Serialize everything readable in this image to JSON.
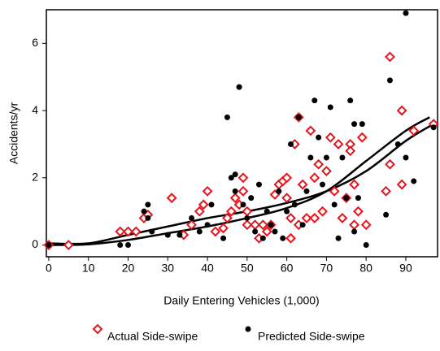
{
  "chart_data": {
    "type": "scatter",
    "x_label": "Daily Entering Vehicles (1,000)",
    "y_label": "Accidents/yr",
    "xlim": [
      -0.6,
      98
    ],
    "ylim": [
      -0.35,
      7
    ],
    "xticks": [
      0,
      10,
      20,
      30,
      40,
      50,
      60,
      70,
      80,
      90
    ],
    "yticks": [
      0,
      2,
      4,
      6
    ],
    "series": [
      {
        "name": "Actual Side-swipe",
        "color": "#e8141c",
        "marker": "diamond",
        "x": [
          0,
          5,
          18,
          20,
          22,
          24,
          25,
          31,
          34,
          36,
          38,
          39,
          40,
          42,
          44,
          45,
          46,
          47,
          48,
          49,
          49,
          50,
          50,
          52,
          53,
          54,
          55,
          56,
          57,
          58,
          59,
          60,
          60,
          61,
          61,
          62,
          63,
          63,
          64,
          65,
          66,
          67,
          67,
          68,
          69,
          70,
          71,
          72,
          73,
          74,
          75,
          76,
          76,
          77,
          77,
          78,
          79,
          80,
          85,
          86,
          86,
          89,
          89,
          92,
          97
        ],
        "values": [
          0,
          0,
          0.4,
          0.4,
          0.4,
          0.8,
          0.9,
          1.4,
          0.3,
          0.6,
          1.0,
          1.2,
          1.6,
          0.4,
          0.5,
          0.8,
          1.0,
          1.4,
          1.2,
          2.0,
          1.6,
          1.0,
          0.6,
          0.6,
          0.2,
          0.6,
          0.4,
          0.6,
          1.5,
          1.8,
          1.9,
          2.0,
          1.4,
          0.8,
          0.2,
          3.0,
          3.8,
          0.6,
          1.8,
          0.8,
          3.4,
          2.0,
          0.8,
          2.4,
          1.0,
          2.2,
          3.2,
          1.6,
          3.0,
          0.8,
          1.4,
          3.0,
          2.8,
          1.8,
          0.6,
          1.0,
          3.2,
          0.6,
          1.6,
          5.6,
          2.4,
          4.0,
          1.8,
          3.4,
          3.6
        ]
      },
      {
        "name": "Predicted Side-swipe",
        "color": "#000000",
        "marker": "circle",
        "x": [
          0,
          18,
          20,
          24,
          25,
          25,
          26,
          30,
          33,
          36,
          38,
          40,
          41,
          44,
          45,
          46,
          47,
          47,
          48,
          49,
          50,
          51,
          52,
          53,
          54,
          55,
          56,
          57,
          58,
          59,
          60,
          61,
          62,
          63,
          64,
          65,
          66,
          67,
          68,
          69,
          70,
          71,
          72,
          73,
          74,
          75,
          76,
          77,
          77,
          78,
          79,
          80,
          85,
          86,
          88,
          90,
          90,
          92,
          97
        ],
        "values": [
          0,
          0,
          0,
          1.0,
          1.2,
          0.8,
          0.4,
          0.3,
          0.3,
          0.8,
          0.4,
          0.6,
          1.2,
          0.2,
          3.8,
          2.0,
          1.6,
          2.1,
          4.7,
          1.2,
          0.8,
          1.4,
          0.4,
          1.8,
          0.2,
          1.0,
          0.6,
          0.4,
          1.6,
          0.2,
          1.0,
          3.0,
          1.2,
          3.8,
          0.6,
          1.6,
          2.6,
          4.3,
          3.2,
          1.8,
          2.6,
          4.1,
          1.2,
          0.2,
          2.6,
          1.4,
          4.3,
          3.6,
          0.4,
          1.4,
          3.6,
          0,
          0.9,
          4.9,
          3.0,
          6.9,
          2.6,
          1.9,
          3.5
        ]
      }
    ],
    "curves": [
      {
        "color": "#000000",
        "x": [
          0,
          10,
          20,
          30,
          40,
          50,
          60,
          70,
          80,
          90,
          96
        ],
        "values": [
          0,
          0.02,
          0.15,
          0.35,
          0.55,
          0.8,
          1.1,
          1.6,
          2.5,
          3.4,
          3.8
        ]
      },
      {
        "color": "#000000",
        "x": [
          0,
          10,
          20,
          30,
          40,
          50,
          60,
          70,
          80,
          90,
          97
        ],
        "values": [
          0.05,
          0.05,
          0.3,
          0.55,
          0.8,
          1.0,
          1.25,
          1.6,
          2.2,
          3.1,
          3.6
        ]
      }
    ]
  }
}
